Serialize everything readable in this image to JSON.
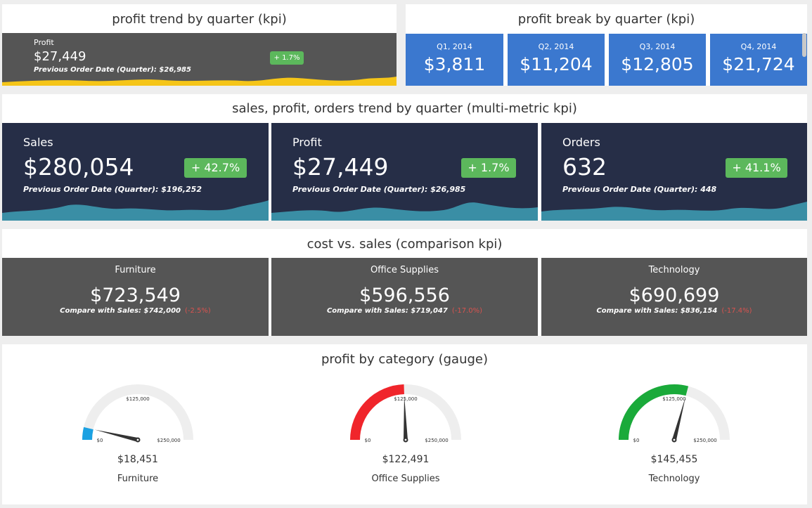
{
  "profit_trend_panel": {
    "title": "profit trend by quarter (kpi)",
    "label": "Profit",
    "value": "$27,449",
    "previous": "Previous Order Date (Quarter): $26,985",
    "change": "+ 1.7%",
    "colors": {
      "tile": "#555555",
      "area": "#f5c518",
      "badge": "#5cb85c"
    }
  },
  "profit_break_panel": {
    "title": "profit break by quarter (kpi)",
    "tiles": [
      {
        "label": "Q1, 2014",
        "value": "$3,811"
      },
      {
        "label": "Q2, 2014",
        "value": "$11,204"
      },
      {
        "label": "Q3, 2014",
        "value": "$12,805"
      },
      {
        "label": "Q4, 2014",
        "value": "$21,724"
      }
    ],
    "colors": {
      "tile": "#3b78cf"
    }
  },
  "multi_metric_panel": {
    "title": "sales, profit, orders trend by quarter (multi-metric kpi)",
    "tiles": [
      {
        "label": "Sales",
        "value": "$280,054",
        "change": "+ 42.7%",
        "previous": "Previous Order Date (Quarter): $196,252"
      },
      {
        "label": "Profit",
        "value": "$27,449",
        "change": "+ 1.7%",
        "previous": "Previous Order Date (Quarter): $26,985"
      },
      {
        "label": "Orders",
        "value": "632",
        "change": "+ 41.1%",
        "previous": "Previous Order Date (Quarter): 448"
      }
    ],
    "colors": {
      "tile": "#262e47",
      "area": "#3a8ea5"
    }
  },
  "cost_sales_panel": {
    "title": "cost vs. sales (comparison kpi)",
    "tiles": [
      {
        "label": "Furniture",
        "value": "$723,549",
        "compare": "Compare with Sales: $742,000",
        "pct": "(-2.5%)"
      },
      {
        "label": "Office Supplies",
        "value": "$596,556",
        "compare": "Compare with Sales: $719,047",
        "pct": "(-17.0%)"
      },
      {
        "label": "Technology",
        "value": "$690,699",
        "compare": "Compare with Sales: $836,154",
        "pct": "(-17.4%)"
      }
    ],
    "colors": {
      "tile": "#555555",
      "negative": "#d9534f"
    }
  },
  "gauge_panel": {
    "title": "profit by category (gauge)",
    "scale": {
      "min": 0,
      "mid": 125000,
      "max": 250000,
      "min_label": "$0",
      "mid_label": "$125,000",
      "max_label": "$250,000"
    },
    "gauges": [
      {
        "name": "Furniture",
        "value": 18451,
        "value_label": "$18,451",
        "color": "#1ba1e2"
      },
      {
        "name": "Office Supplies",
        "value": 122491,
        "value_label": "$122,491",
        "color": "#f0252b"
      },
      {
        "name": "Technology",
        "value": 145455,
        "value_label": "$145,455",
        "color": "#1aaa3a"
      }
    ],
    "colors": {
      "track": "#eeeeee",
      "needle": "#333333"
    }
  }
}
